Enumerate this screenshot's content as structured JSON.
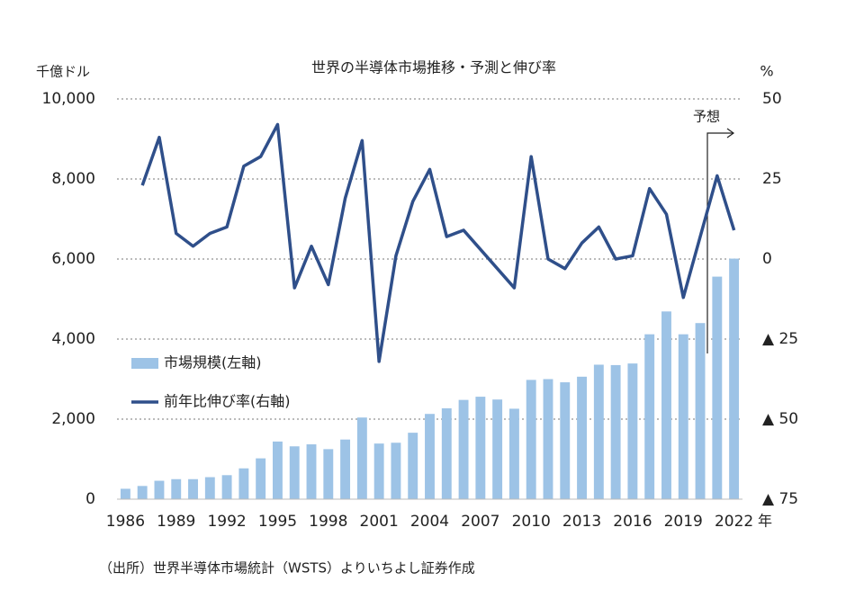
{
  "chart_data": {
    "type": "bar-line",
    "title": "世界の半導体市場推移・予測と伸び率",
    "y_unit": "千億ドル",
    "y2_unit": "%",
    "x_unit": "年",
    "source": "（出所）世界半導体市場統計（WSTS）よりいちよし証券作成",
    "annotation": "予想",
    "categories": [
      "1986",
      null,
      null,
      "1989",
      null,
      null,
      "1992",
      null,
      null,
      "1995",
      null,
      null,
      "1998",
      null,
      null,
      "2001",
      null,
      null,
      "2004",
      null,
      null,
      "2007",
      null,
      null,
      "2010",
      null,
      null,
      "2013",
      null,
      null,
      "2016",
      null,
      null,
      "2019",
      null,
      null,
      "2022"
    ],
    "series": [
      {
        "name": "市場規模(左軸)",
        "type": "bar",
        "color": "#9dc3e6",
        "values": [
          260,
          330,
          460,
          500,
          500,
          550,
          600,
          770,
          1020,
          1440,
          1320,
          1370,
          1250,
          1490,
          2040,
          1390,
          1410,
          1660,
          2130,
          2270,
          2480,
          2560,
          2490,
          2260,
          2980,
          3000,
          2920,
          3060,
          3360,
          3350,
          3390,
          4120,
          4690,
          4120,
          4400,
          5560,
          6010
        ]
      },
      {
        "name": "前年比伸び率(右軸)",
        "type": "line",
        "axis": "y2",
        "color": "#2f4f8a",
        "values": [
          null,
          23,
          38,
          8,
          4,
          8,
          10,
          29,
          32,
          42,
          -9,
          4,
          -8,
          19,
          37,
          -32,
          1,
          18,
          28,
          7,
          9,
          3,
          -3,
          -9,
          32,
          0,
          -3,
          5,
          10,
          0,
          1,
          22,
          14,
          -12,
          7,
          26,
          9
        ]
      }
    ],
    "ylim": [
      0,
      10000
    ],
    "yticks": [
      0,
      {
        "value": 2000,
        "label": "2,000"
      },
      {
        "value": 4000,
        "label": "4,000"
      },
      {
        "value": 6000,
        "label": "6,000"
      },
      {
        "value": 8000,
        "label": "8,000"
      },
      {
        "value": 10000,
        "label": "10,000"
      }
    ],
    "y2lim": [
      -75,
      50
    ],
    "y2ticks": [
      {
        "value": -75,
        "label": "▲ 75"
      },
      {
        "value": -50,
        "label": "▲ 50"
      },
      {
        "value": -25,
        "label": "▲ 25"
      },
      0,
      25,
      50
    ],
    "grid": true
  }
}
